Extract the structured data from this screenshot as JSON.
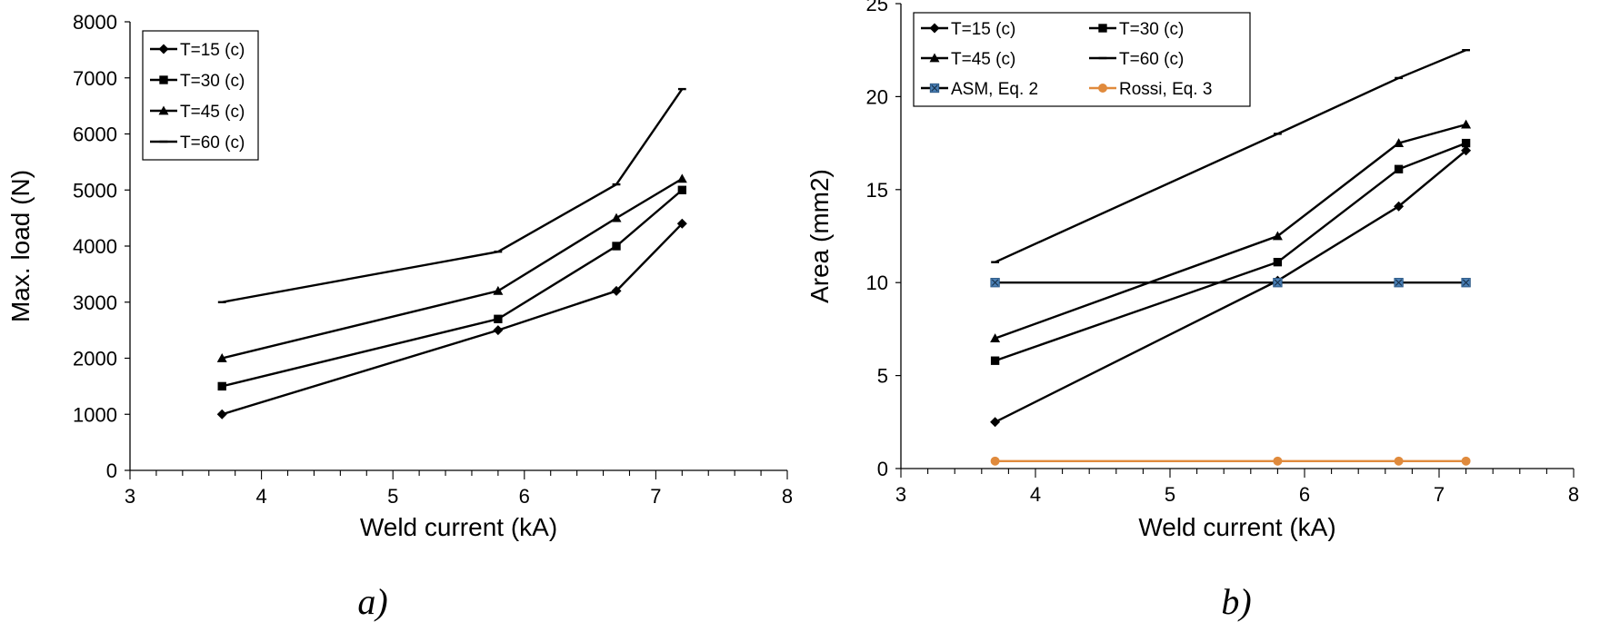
{
  "chart_data": [
    {
      "type": "line",
      "title": "",
      "caption": "a)",
      "xlabel": "Weld  current (kA)",
      "ylabel": "Max. load (N)",
      "xlim": [
        3,
        8
      ],
      "ylim": [
        0,
        8000
      ],
      "xticks": [
        3,
        4,
        5,
        6,
        7,
        8
      ],
      "yticks": [
        0,
        1000,
        2000,
        3000,
        4000,
        5000,
        6000,
        7000,
        8000
      ],
      "grid": false,
      "legend": "top-left",
      "legend_columns": 1,
      "x": [
        3.7,
        5.8,
        6.7,
        7.2
      ],
      "series": [
        {
          "name": "T=15 (c)",
          "marker": "diamond",
          "color": "#000000",
          "values": [
            1000,
            2500,
            3200,
            4400
          ]
        },
        {
          "name": "T=30 (c)",
          "marker": "square",
          "color": "#000000",
          "values": [
            1500,
            2700,
            4000,
            5000
          ]
        },
        {
          "name": "T=45 (c)",
          "marker": "triangle",
          "color": "#000000",
          "values": [
            2000,
            3200,
            4500,
            5200
          ]
        },
        {
          "name": "T=60 (c)",
          "marker": "dash",
          "color": "#000000",
          "values": [
            3000,
            3900,
            5100,
            6800
          ]
        }
      ]
    },
    {
      "type": "line",
      "title": "",
      "caption": "b)",
      "xlabel": "Weld  current (kA)",
      "ylabel": "Area (mm2)",
      "xlim": [
        3,
        8
      ],
      "ylim": [
        0,
        25
      ],
      "xticks": [
        3,
        4,
        5,
        6,
        7,
        8
      ],
      "yticks": [
        0,
        5,
        10,
        15,
        20,
        25
      ],
      "grid": false,
      "legend": "top-left",
      "legend_columns": 2,
      "x": [
        3.7,
        5.8,
        6.7,
        7.2
      ],
      "series": [
        {
          "name": "T=15 (c)",
          "marker": "diamond",
          "color": "#000000",
          "values": [
            2.5,
            10.1,
            14.1,
            17.1
          ]
        },
        {
          "name": "T=30 (c)",
          "marker": "square",
          "color": "#000000",
          "values": [
            5.8,
            11.1,
            16.1,
            17.5
          ]
        },
        {
          "name": "T=45 (c)",
          "marker": "triangle",
          "color": "#000000",
          "values": [
            7.0,
            12.5,
            17.5,
            18.5
          ]
        },
        {
          "name": "T=60 (c)",
          "marker": "dash",
          "color": "#000000",
          "values": [
            11.1,
            18.0,
            21.0,
            22.5
          ]
        },
        {
          "name": "ASM, Eq. 2",
          "marker": "xsquare",
          "color": "#000000",
          "markerColor": "#4a7fb5",
          "values": [
            10,
            10,
            10,
            10
          ]
        },
        {
          "name": "Rossi, Eq. 3",
          "marker": "circle",
          "color": "#e08a3c",
          "values": [
            0.4,
            0.4,
            0.4,
            0.4
          ]
        }
      ]
    }
  ]
}
